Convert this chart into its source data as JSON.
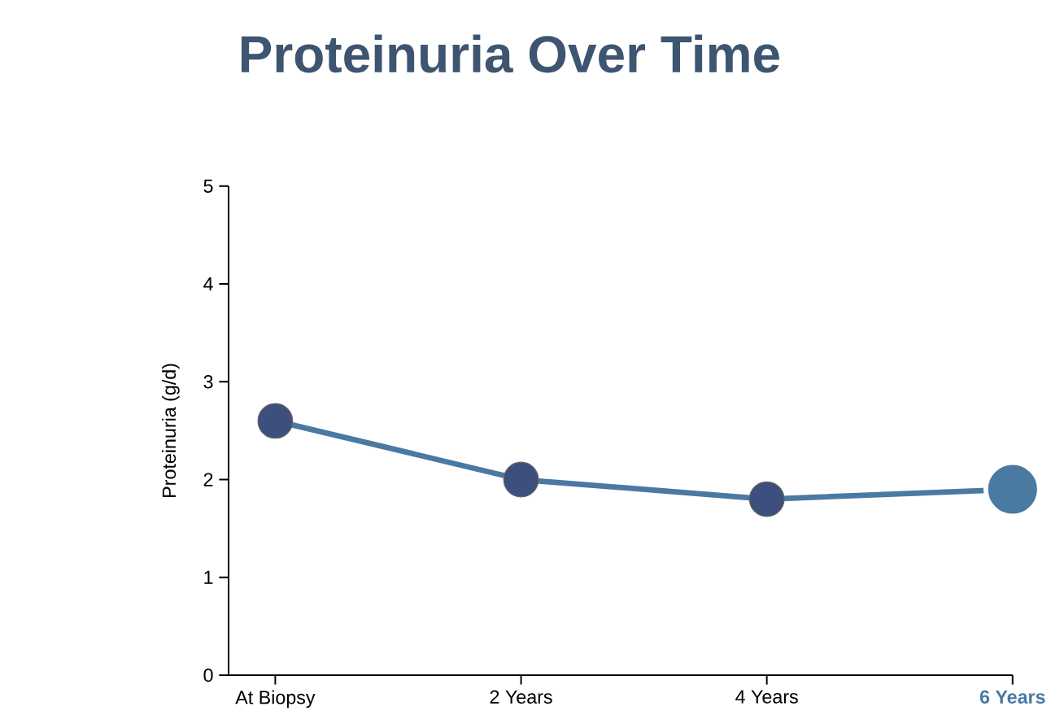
{
  "chart_data": {
    "type": "line",
    "title": "Proteinuria Over Time",
    "ylabel": "Proteinuria (g/d)",
    "categories": [
      "At Biopsy",
      "2 Years",
      "4 Years",
      "6 Years"
    ],
    "series": [
      {
        "color": "#4a79a2",
        "values": [
          2.6,
          2.0,
          1.8,
          1.9
        ],
        "colors": [
          "#3d4f7c",
          "#3d4f7c",
          "#3d4f7c",
          "#4a79a2"
        ]
      }
    ],
    "ylim": [
      0,
      5
    ],
    "yticks": [
      0,
      1,
      2,
      3,
      4,
      5
    ],
    "marker": "circle",
    "line_style": "solid",
    "grid": false
  }
}
